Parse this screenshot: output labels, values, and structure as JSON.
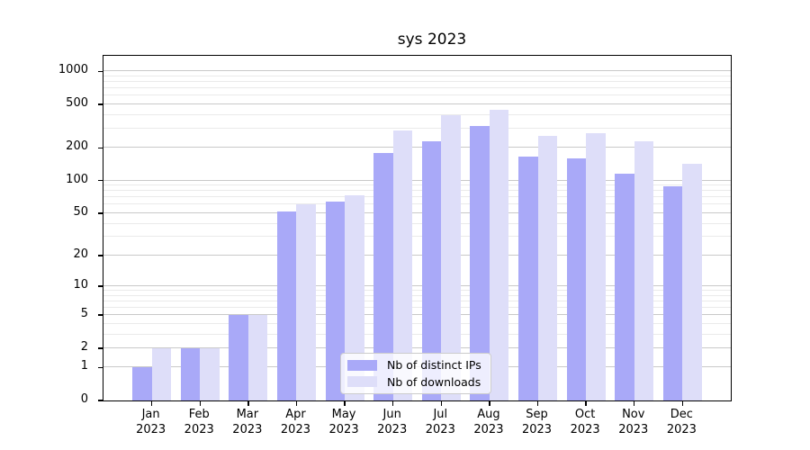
{
  "title": "sys 2023",
  "legend": {
    "items": [
      {
        "label": "Nb of distinct IPs",
        "color": "#a9a9f8"
      },
      {
        "label": "Nb of downloads",
        "color": "#dedef9"
      }
    ]
  },
  "axis": {
    "y_tick_labels": [
      "1000",
      "500",
      "200",
      "100",
      "50",
      "20",
      "10",
      "5",
      "2",
      "1",
      "0"
    ],
    "x_year": "2023"
  },
  "chart_data": {
    "type": "bar",
    "title": "sys 2023",
    "categories": [
      "Jan",
      "Feb",
      "Mar",
      "Apr",
      "May",
      "Jun",
      "Jul",
      "Aug",
      "Sep",
      "Oct",
      "Nov",
      "Dec"
    ],
    "year": "2023",
    "series": [
      {
        "name": "Nb of distinct IPs",
        "color": "#a9a9f8",
        "values": [
          1,
          2,
          5,
          52,
          64,
          180,
          230,
          318,
          167,
          159,
          116,
          88
        ]
      },
      {
        "name": "Nb of downloads",
        "color": "#dedef9",
        "values": [
          2,
          2,
          5,
          60,
          74,
          290,
          400,
          450,
          258,
          275,
          228,
          144
        ]
      }
    ],
    "yscale": "log1p",
    "ylabel": "",
    "xlabel": "",
    "y_major_ticks": [
      0,
      1,
      2,
      5,
      10,
      20,
      50,
      100,
      200,
      500,
      1000
    ],
    "y_minor_ticks": [
      3,
      4,
      6,
      7,
      8,
      9,
      30,
      40,
      60,
      70,
      80,
      90,
      300,
      400,
      600,
      700,
      800,
      900
    ],
    "ylim": [
      0,
      1390
    ],
    "grid": true,
    "bar_width_units": 0.4,
    "x_units": 13,
    "legend_position": "lower center",
    "colors": {
      "major_grid": "#c9c9c9",
      "minor_grid": "#eaeaea",
      "axis": "#000000"
    }
  }
}
